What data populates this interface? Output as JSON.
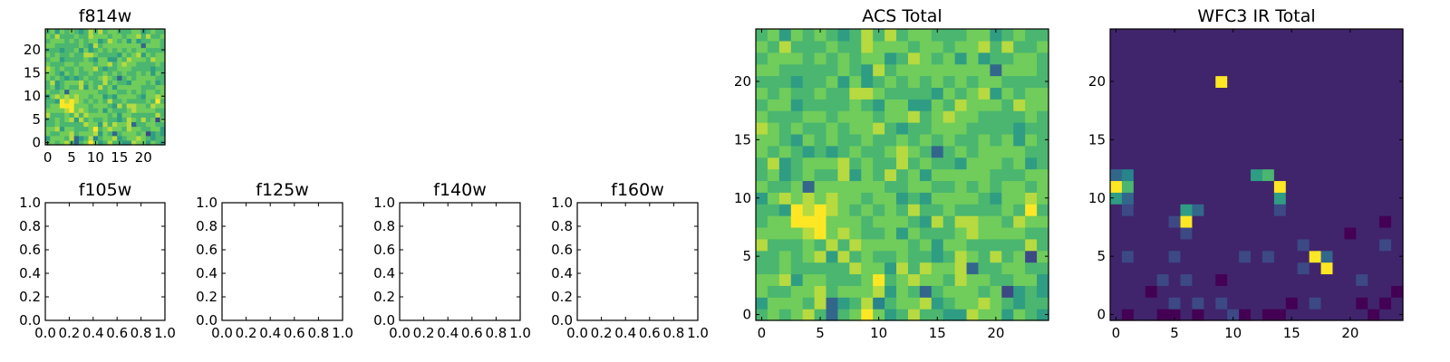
{
  "colors": {
    "viridis_stops": [
      "#440154",
      "#3b528b",
      "#21918c",
      "#5ec962",
      "#fde725"
    ],
    "axis": "#000000",
    "background": "#ffffff"
  },
  "chart_data": [
    {
      "id": "f814w",
      "type": "heatmap",
      "title": "f814w",
      "grid_size": 25,
      "origin": "lower",
      "colormap": "viridis",
      "xticks": [
        "0",
        "5",
        "10",
        "15",
        "20"
      ],
      "yticks": [
        "0",
        "5",
        "10",
        "15",
        "20"
      ],
      "xlim": [
        -0.5,
        24.5
      ],
      "ylim": [
        -0.5,
        24.5
      ],
      "values": [
        "6767863679756866558775765",
        "5777683568467785677876566",
        "7667786777857636777672565",
        "7785776667967877687766775",
        "6676666687758687783667766",
        "6676785867667665687686727",
        "8666768687777675776666686",
        "7777897876675766678777766",
        "6779997776777658688776877",
        "6659898767676866766667696",
        "5787878776775657777657787",
        "7667377777766776676767767",
        "6756766857686757777766677",
        "6856777867668676657776756",
        "7676565676678763676777766",
        "7765767667667676766767576",
        "8767667677865667776666566",
        "7666776777677867877666676",
        "6775666676577557687776877",
        "7676676688766665767857677",
        "6665667575676767676776666",
        "7766666765867777777737776",
        "6777676767756876757566776",
        "7686667668777677677868667",
        "6757676568686776667756766"
      ]
    },
    {
      "id": "f105w",
      "type": "heatmap",
      "title": "f105w",
      "empty": true,
      "xticks": [
        "0.0",
        "0.2",
        "0.4",
        "0.6",
        "0.8",
        "1.0"
      ],
      "yticks": [
        "0.0",
        "0.2",
        "0.4",
        "0.6",
        "0.8",
        "1.0"
      ],
      "xlim": [
        0,
        1
      ],
      "ylim": [
        0,
        1
      ]
    },
    {
      "id": "f125w",
      "type": "heatmap",
      "title": "f125w",
      "empty": true,
      "xticks": [
        "0.0",
        "0.2",
        "0.4",
        "0.6",
        "0.8",
        "1.0"
      ],
      "yticks": [
        "0.0",
        "0.2",
        "0.4",
        "0.6",
        "0.8",
        "1.0"
      ],
      "xlim": [
        0,
        1
      ],
      "ylim": [
        0,
        1
      ]
    },
    {
      "id": "f140w",
      "type": "heatmap",
      "title": "f140w",
      "empty": true,
      "xticks": [
        "0.0",
        "0.2",
        "0.4",
        "0.6",
        "0.8",
        "1.0"
      ],
      "yticks": [
        "0.0",
        "0.2",
        "0.4",
        "0.6",
        "0.8",
        "1.0"
      ],
      "xlim": [
        0,
        1
      ],
      "ylim": [
        0,
        1
      ]
    },
    {
      "id": "f160w",
      "type": "heatmap",
      "title": "f160w",
      "empty": true,
      "xticks": [
        "0.0",
        "0.2",
        "0.4",
        "0.6",
        "0.8",
        "1.0"
      ],
      "yticks": [
        "0.0",
        "0.2",
        "0.4",
        "0.6",
        "0.8",
        "1.0"
      ],
      "xlim": [
        0,
        1
      ],
      "ylim": [
        0,
        1
      ]
    },
    {
      "id": "acs-total",
      "type": "heatmap",
      "title": "ACS Total",
      "grid_size": 25,
      "origin": "lower",
      "colormap": "viridis",
      "xticks": [
        "0",
        "5",
        "10",
        "15",
        "20"
      ],
      "yticks": [
        "0",
        "5",
        "10",
        "15",
        "20"
      ],
      "xlim": [
        -0.5,
        24.5
      ],
      "ylim": [
        -0.5,
        24.5
      ],
      "values": [
        "6767863679756866558775765",
        "5777683568467785677876566",
        "7667786777857636777672565",
        "7785776667967877687766775",
        "6676666687758687783667766",
        "6676785867667665687686727",
        "8666768687777675776666686",
        "7777897876675766678777766",
        "6779997776777658688776877",
        "6659898767676866766667696",
        "5787878776775657777657787",
        "7667377777766776676767767",
        "6756766857686757777766677",
        "6856777867668676657776756",
        "7676565676678763676777766",
        "7765767667667676766767576",
        "8767667677865667776666566",
        "7666776777677867877666676",
        "6775666676577557687776877",
        "7676676688766665767857677",
        "6665667575676767676776666",
        "7766666765867777777737776",
        "6777676767756876757566776",
        "7686667668777677677868667",
        "6757676568686776667756766"
      ]
    },
    {
      "id": "wfc3-ir-total",
      "type": "heatmap",
      "title": "WFC3 IR Total",
      "grid_size": 25,
      "origin": "lower",
      "colormap": "viridis",
      "xticks": [
        "0",
        "5",
        "10",
        "15",
        "20"
      ],
      "yticks": [
        "0",
        "5",
        "10",
        "15",
        "20"
      ],
      "xlim": [
        -0.5,
        24.5
      ],
      "ylim": [
        -0.5,
        24.5
      ],
      "values": [
        "1011001011201001111111011",
        "1111121212111110121110101",
        "1110111111111111111111110",
        "1111212110111111111112111",
        "1111111111111111219111111",
        "1211121111121211193111111",
        "1111111111111111211111121",
        "1111112111111111111101111",
        "1111129111111111111111101",
        "1211115311111121111111111",
        "5311111111111151111111111",
        "9611111111111191111111111",
        "3411111111115611111111111",
        "1111111111111111111111111",
        "1111111111111111111111111",
        "1111111111111111111111111",
        "1111111111111111111111111",
        "1111111111111111111111111",
        "1111111111111111111111111",
        "1111111111111111111111111",
        "1111111119111111111111111",
        "1111111111111111111111111",
        "1111111111111111111111111",
        "1111111111111111111111111",
        "1111111111111111111111111"
      ]
    }
  ]
}
